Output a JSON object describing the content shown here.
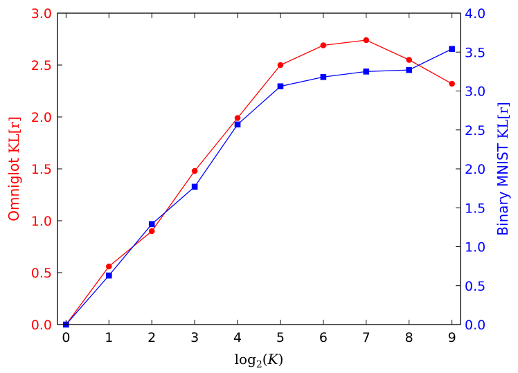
{
  "chart_data": {
    "type": "line",
    "title": "",
    "xlabel": {
      "func": "log",
      "sub": "2",
      "open": "(",
      "var": "K",
      "close": ")"
    },
    "x": [
      0,
      1,
      2,
      3,
      4,
      5,
      6,
      7,
      8,
      9
    ],
    "xlim": [
      -0.2,
      9.2
    ],
    "xticks": [
      "0",
      "1",
      "2",
      "3",
      "4",
      "5",
      "6",
      "7",
      "8",
      "9"
    ],
    "grid": false,
    "legend": "none",
    "y_left": {
      "label_text": "Omniglot",
      "label_math": "KL[r]",
      "color": "#ff0000",
      "ylim": [
        0,
        3.0
      ],
      "ticks": [
        "0.0",
        "0.5",
        "1.0",
        "1.5",
        "2.0",
        "2.5",
        "3.0"
      ]
    },
    "y_right": {
      "label_text": "Binary MNIST",
      "label_math": "KL[r]",
      "color": "#0000ff",
      "ylim": [
        0,
        4.0
      ],
      "ticks": [
        "0.0",
        "0.5",
        "1.0",
        "1.5",
        "2.0",
        "2.5",
        "3.0",
        "3.5",
        "4.0"
      ]
    },
    "series": [
      {
        "axis": "left",
        "color": "#ff0000",
        "marker": "circle",
        "values": [
          0.0,
          0.56,
          0.9,
          1.48,
          1.99,
          2.5,
          2.69,
          2.74,
          2.55,
          2.32
        ]
      },
      {
        "axis": "right",
        "color": "#0000ff",
        "marker": "square",
        "values": [
          0.0,
          0.63,
          1.29,
          1.77,
          2.57,
          3.06,
          3.18,
          3.25,
          3.27,
          3.54
        ]
      }
    ]
  }
}
